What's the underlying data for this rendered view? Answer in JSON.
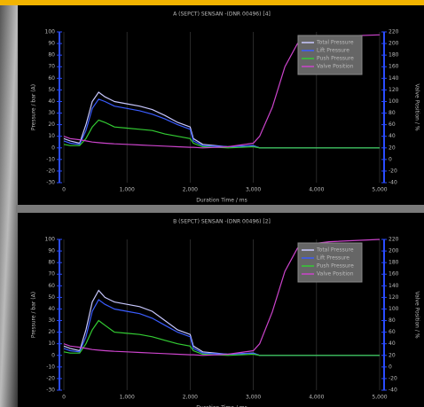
{
  "chart_data": [
    {
      "type": "line",
      "title": "A (SEPCT) SENSAN -(DNR 00496) [4]",
      "x_label": "Duration Time / ms",
      "y_label": "Pressure / bar (A)",
      "y2_label": "Valve Position / %",
      "x": [
        0,
        100,
        250,
        350,
        450,
        550,
        650,
        800,
        1000,
        1200,
        1400,
        1600,
        1800,
        2000,
        2050,
        2200,
        2600,
        3000,
        3100,
        3300,
        3500,
        3700,
        3900,
        4200,
        5000
      ],
      "series": [
        {
          "name": "Total Pressure",
          "color": "#c8c8ff",
          "values": [
            8,
            6,
            4,
            20,
            40,
            48,
            44,
            40,
            38,
            36,
            33,
            28,
            22,
            18,
            8,
            3,
            1,
            2,
            0,
            0,
            0,
            0,
            0,
            0,
            0
          ]
        },
        {
          "name": "Lift Pressure",
          "color": "#3a5cff",
          "values": [
            6,
            4,
            3,
            15,
            34,
            42,
            40,
            36,
            34,
            32,
            29,
            25,
            20,
            16,
            6,
            2,
            1,
            2,
            0,
            0,
            0,
            0,
            0,
            0,
            0
          ]
        },
        {
          "name": "Push Pressure",
          "color": "#33cc33",
          "values": [
            3,
            2,
            2,
            8,
            18,
            24,
            22,
            18,
            17,
            16,
            15,
            12,
            10,
            8,
            4,
            1,
            0,
            1,
            0,
            0,
            0,
            0,
            0,
            0,
            0
          ]
        },
        {
          "name": "Valve Position",
          "color": "#cc44cc",
          "axis": "y2",
          "values": [
            40,
            36,
            34,
            32,
            30,
            29,
            28,
            27,
            26,
            25,
            24,
            23,
            22,
            21,
            21,
            20,
            22,
            28,
            40,
            90,
            160,
            200,
            210,
            212,
            215
          ]
        }
      ],
      "xlim": [
        0,
        5000
      ],
      "xticks": [
        0,
        {
          "value": 1000,
          "label": "1,000"
        },
        {
          "value": 2000,
          "label": "2,000"
        },
        {
          "value": 3000,
          "label": "3,000"
        },
        {
          "value": 4000,
          "label": "4,000"
        },
        {
          "value": 5000,
          "label": "5,000"
        }
      ],
      "ylim": [
        -30,
        100
      ],
      "yticks": [
        -30,
        -20,
        -10,
        0,
        10,
        20,
        30,
        40,
        50,
        60,
        70,
        80,
        90,
        100
      ],
      "y2lim": [
        -40,
        220
      ],
      "y2ticks": [
        -40,
        -20,
        0,
        20,
        40,
        60,
        80,
        100,
        120,
        140,
        160,
        180,
        200,
        220
      ],
      "grid": "x",
      "legend": "upper right"
    },
    {
      "type": "line",
      "title": "B (SEPCT) SENSAN -(DNR 00496) [2]",
      "x_label": "Duration Time / ms",
      "y_label": "Pressure / bar (A)",
      "y2_label": "Valve Position / %",
      "x": [
        0,
        100,
        250,
        350,
        450,
        550,
        650,
        800,
        1000,
        1200,
        1400,
        1600,
        1800,
        2000,
        2050,
        2200,
        2600,
        3000,
        3100,
        3300,
        3500,
        3700,
        3900,
        4200,
        5000
      ],
      "series": [
        {
          "name": "Total Pressure",
          "color": "#c8c8ff",
          "values": [
            8,
            6,
            4,
            22,
            46,
            56,
            50,
            46,
            44,
            42,
            38,
            30,
            22,
            18,
            8,
            3,
            1,
            2,
            0,
            0,
            0,
            0,
            0,
            0,
            0
          ]
        },
        {
          "name": "Lift Pressure",
          "color": "#3a5cff",
          "values": [
            6,
            4,
            3,
            16,
            38,
            48,
            44,
            40,
            38,
            36,
            32,
            26,
            20,
            16,
            6,
            2,
            1,
            2,
            0,
            0,
            0,
            0,
            0,
            0,
            0
          ]
        },
        {
          "name": "Push Pressure",
          "color": "#33cc33",
          "values": [
            3,
            2,
            2,
            10,
            22,
            30,
            26,
            20,
            19,
            18,
            16,
            13,
            10,
            8,
            4,
            1,
            0,
            1,
            0,
            0,
            0,
            0,
            0,
            0,
            0
          ]
        },
        {
          "name": "Valve Position",
          "color": "#cc44cc",
          "axis": "y2",
          "values": [
            40,
            36,
            34,
            32,
            30,
            29,
            28,
            27,
            26,
            25,
            24,
            23,
            22,
            21,
            21,
            20,
            22,
            28,
            40,
            95,
            165,
            205,
            212,
            216,
            220
          ]
        }
      ],
      "xlim": [
        0,
        5000
      ],
      "xticks": [
        0,
        {
          "value": 1000,
          "label": "1,000"
        },
        {
          "value": 2000,
          "label": "2,000"
        },
        {
          "value": 3000,
          "label": "3,000"
        },
        {
          "value": 4000,
          "label": "4,000"
        },
        {
          "value": 5000,
          "label": "5,000"
        }
      ],
      "ylim": [
        -30,
        100
      ],
      "yticks": [
        -30,
        -20,
        -10,
        0,
        10,
        20,
        30,
        40,
        50,
        60,
        70,
        80,
        90,
        100
      ],
      "y2lim": [
        -40,
        220
      ],
      "y2ticks": [
        -40,
        -20,
        0,
        20,
        40,
        60,
        80,
        100,
        120,
        140,
        160,
        180,
        200,
        220
      ],
      "grid": "x",
      "legend": "upper right"
    }
  ]
}
